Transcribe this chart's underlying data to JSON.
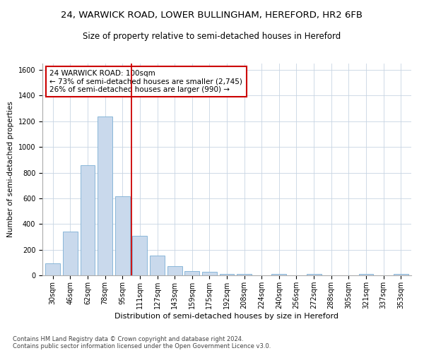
{
  "title1": "24, WARWICK ROAD, LOWER BULLINGHAM, HEREFORD, HR2 6FB",
  "title2": "Size of property relative to semi-detached houses in Hereford",
  "xlabel": "Distribution of semi-detached houses by size in Hereford",
  "ylabel": "Number of semi-detached properties",
  "footer1": "Contains HM Land Registry data © Crown copyright and database right 2024.",
  "footer2": "Contains public sector information licensed under the Open Government Licence v3.0.",
  "annotation_title": "24 WARWICK ROAD: 100sqm",
  "annotation_line1": "← 73% of semi-detached houses are smaller (2,745)",
  "annotation_line2": "26% of semi-detached houses are larger (990) →",
  "categories": [
    "30sqm",
    "46sqm",
    "62sqm",
    "78sqm",
    "95sqm",
    "111sqm",
    "127sqm",
    "143sqm",
    "159sqm",
    "175sqm",
    "192sqm",
    "208sqm",
    "224sqm",
    "240sqm",
    "256sqm",
    "272sqm",
    "288sqm",
    "305sqm",
    "321sqm",
    "337sqm",
    "353sqm"
  ],
  "values": [
    95,
    340,
    860,
    1240,
    615,
    310,
    155,
    70,
    35,
    25,
    12,
    12,
    0,
    12,
    0,
    12,
    0,
    0,
    12,
    0,
    12
  ],
  "bar_color": "#c9d9ec",
  "bar_edge_color": "#7bafd4",
  "vline_color": "#cc0000",
  "vline_bin_index": 4,
  "ylim": [
    0,
    1650
  ],
  "yticks": [
    0,
    200,
    400,
    600,
    800,
    1000,
    1200,
    1400,
    1600
  ],
  "grid_color": "#c8d4e3",
  "annotation_box_color": "#ffffff",
  "annotation_box_edge": "#cc0000",
  "title1_fontsize": 9.5,
  "title2_fontsize": 8.5,
  "xlabel_fontsize": 8,
  "ylabel_fontsize": 7.5,
  "tick_fontsize": 7,
  "annotation_fontsize": 7.5,
  "footer_fontsize": 6
}
